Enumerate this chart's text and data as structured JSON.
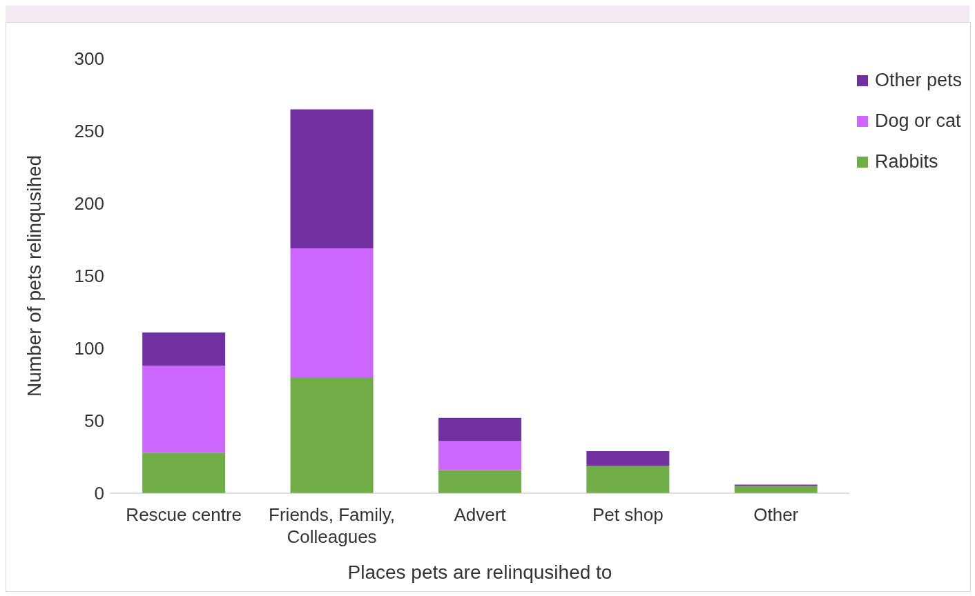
{
  "chart_data": {
    "type": "bar",
    "stacked": true,
    "xlabel": "Places pets are relinqusihed to",
    "ylabel": "Number of pets relinqusihed",
    "categories": [
      "Rescue centre",
      "Friends, Family, Colleagues",
      "Advert",
      "Pet shop",
      "Other"
    ],
    "series": [
      {
        "name": "Rabbits",
        "color": "#70ad47",
        "values": [
          28,
          80,
          16,
          19,
          5
        ]
      },
      {
        "name": "Dog or cat",
        "color": "#cc66ff",
        "values": [
          60,
          89,
          20,
          0,
          0
        ]
      },
      {
        "name": "Other pets",
        "color": "#7030a0",
        "values": [
          23,
          96,
          16,
          10,
          1
        ]
      }
    ],
    "ylim": [
      0,
      300
    ],
    "yticks": [
      0,
      50,
      100,
      150,
      200,
      250,
      300
    ],
    "grid": false,
    "legend": "top right"
  }
}
